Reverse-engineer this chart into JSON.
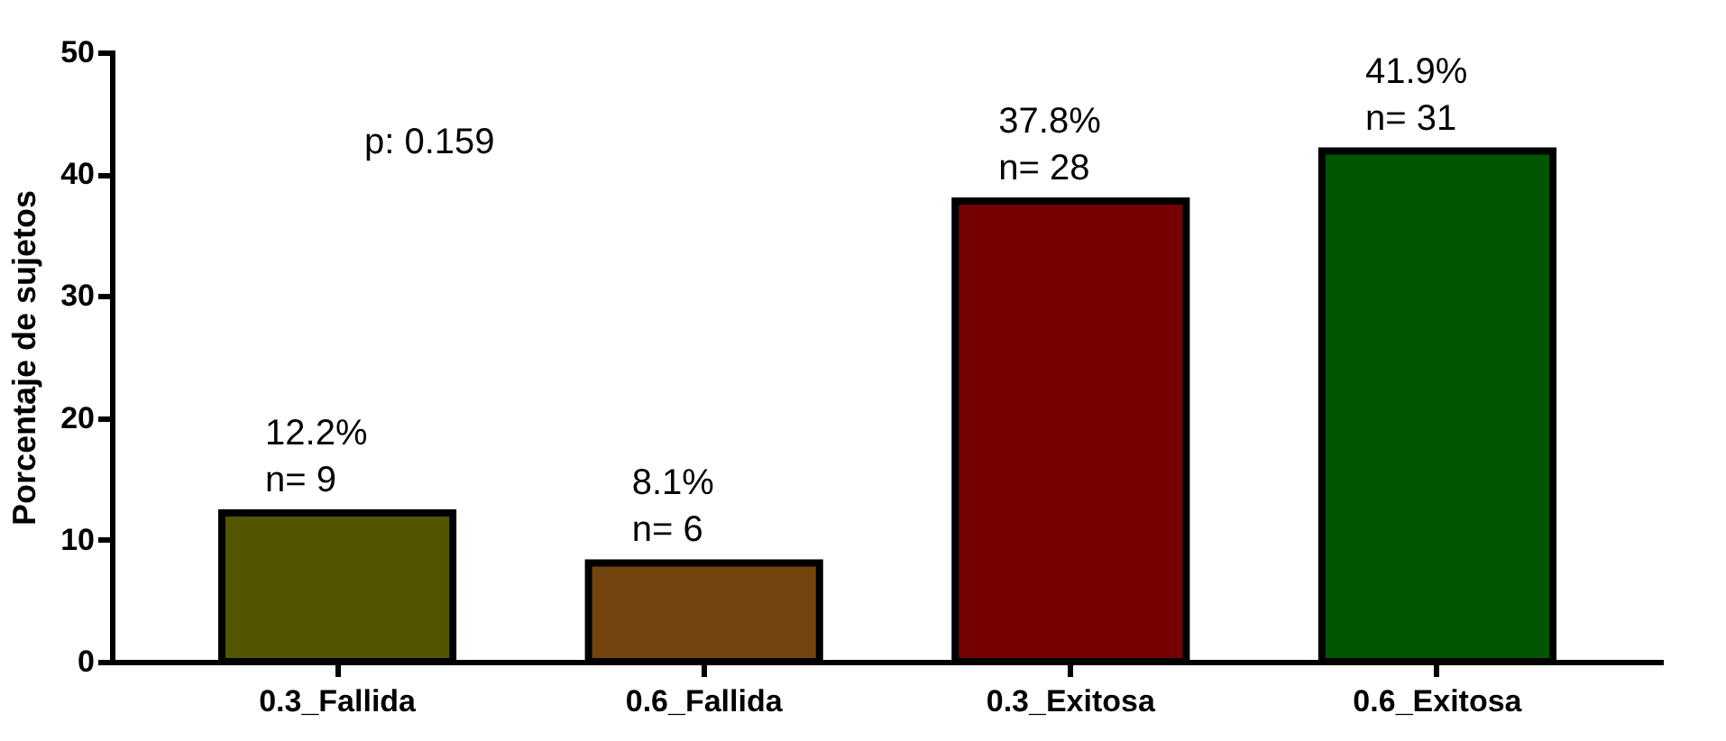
{
  "chart_data": {
    "type": "bar",
    "ylabel": "Porcentaje de sujetos",
    "categories": [
      "0.3_Fallida",
      "0.6_Fallida",
      "0.3_Exitosa",
      "0.6_Exitosa"
    ],
    "values": [
      12.2,
      8.1,
      37.8,
      41.9
    ],
    "colors": [
      "#555500",
      "#74440f",
      "#760000",
      "#005600"
    ],
    "value_labels": [
      "12.2%\nn= 9",
      "8.1%\nn= 6",
      "37.8%\nn= 28",
      "41.9%\nn= 31"
    ],
    "annotations": [
      "p: 0.159"
    ],
    "ylim": [
      0,
      50
    ],
    "yticks": [
      0,
      10,
      20,
      30,
      40,
      50
    ],
    "grid": false
  }
}
